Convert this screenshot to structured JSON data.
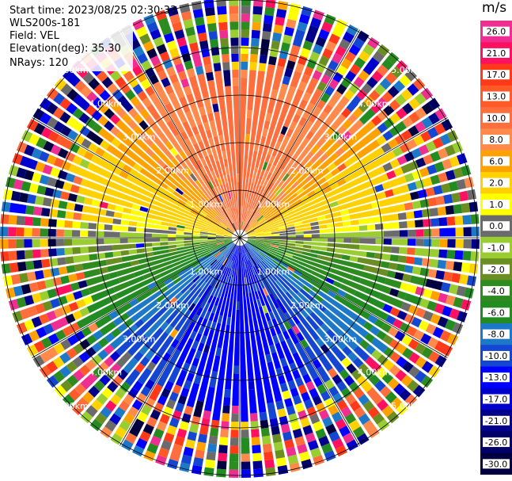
{
  "header": {
    "start_time": "Start time: 2023/08/25 02:30:33",
    "instrument": "WLS200s-181",
    "field": "Field: VEL",
    "elevation": "Elevation(deg): 35.30",
    "nrays": "NRays: 120"
  },
  "range_ring_labels": [
    "1.00km",
    "2.00km",
    "3.00km",
    "4.00km",
    "5.00km"
  ],
  "colorbar": {
    "unit": "m/s",
    "bins": [
      {
        "label": "26.0",
        "color": "#ee2e90"
      },
      {
        "label": "21.0",
        "color": "#ff1060"
      },
      {
        "label": "17.0",
        "color": "#ff3a1a"
      },
      {
        "label": "13.0",
        "color": "#ff5a28"
      },
      {
        "label": "10.0",
        "color": "#ff6f3d"
      },
      {
        "label": "8.0",
        "color": "#ff8a4c"
      },
      {
        "label": "6.0",
        "color": "#ffa200"
      },
      {
        "label": "2.0",
        "color": "#ffd100"
      },
      {
        "label": "1.0",
        "color": "#ffff00"
      },
      {
        "label": "0.0",
        "color": "#6b6b6b"
      },
      {
        "label": "-1.0",
        "color": "#9acd32"
      },
      {
        "label": "-2.0",
        "color": "#6b8e23"
      },
      {
        "label": "-4.0",
        "color": "#2e8b1f"
      },
      {
        "label": "-6.0",
        "color": "#228b22"
      },
      {
        "label": "-8.0",
        "color": "#1e78c8"
      },
      {
        "label": "-10.0",
        "color": "#1446d2"
      },
      {
        "label": "-13.0",
        "color": "#0000ff"
      },
      {
        "label": "-17.0",
        "color": "#0000cd"
      },
      {
        "label": "-21.0",
        "color": "#00008b"
      },
      {
        "label": "-26.0",
        "color": "#000066"
      },
      {
        "label": "-30.0",
        "color": "#000040"
      }
    ]
  }
}
